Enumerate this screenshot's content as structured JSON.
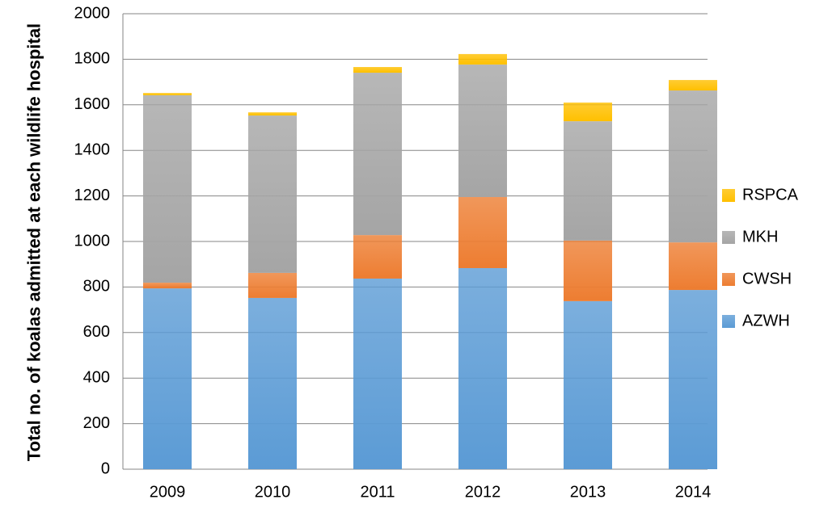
{
  "chart_data": {
    "type": "stacked_bar",
    "y_label": "Total no. of koalas admitted at each wildlife hospital",
    "categories": [
      "2009",
      "2010",
      "2011",
      "2012",
      "2013",
      "2014"
    ],
    "series": [
      {
        "name": "AZWH",
        "color": "#5b9bd5",
        "values": [
          794,
          752,
          837,
          883,
          738,
          787
        ]
      },
      {
        "name": "CWSH",
        "color": "#ed7d31",
        "values": [
          25,
          110,
          191,
          312,
          266,
          209
        ]
      },
      {
        "name": "MKH",
        "color": "#a5a5a5",
        "values": [
          823,
          691,
          713,
          582,
          524,
          667
        ]
      },
      {
        "name": "RSPCA",
        "color": "#ffc000",
        "values": [
          10,
          14,
          25,
          46,
          82,
          46
        ]
      }
    ],
    "ylim": [
      0,
      2000
    ],
    "yticks": [
      0,
      200,
      400,
      600,
      800,
      1000,
      1200,
      1400,
      1600,
      1800,
      2000
    ],
    "grid": true,
    "legend": "right"
  }
}
